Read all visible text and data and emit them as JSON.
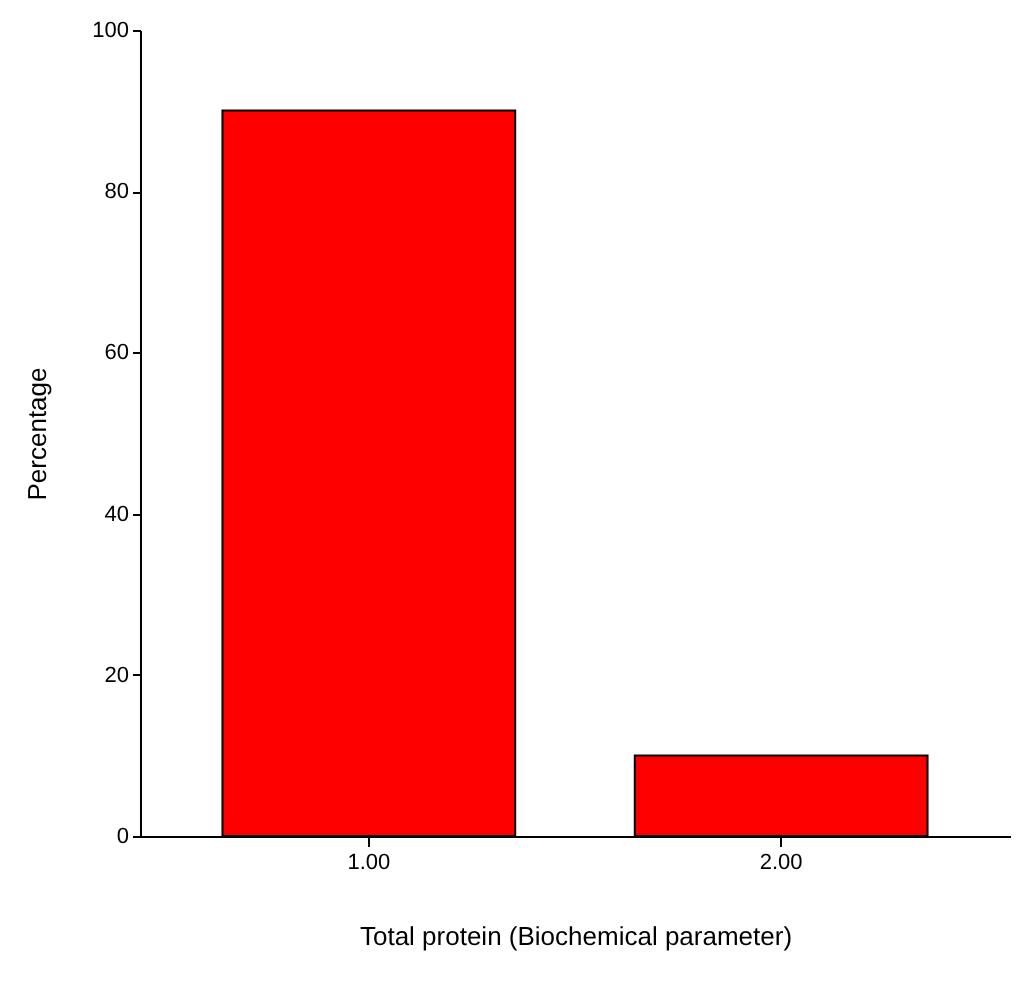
{
  "chart_data": {
    "type": "bar",
    "xlabel": "Total protein (Biochemical parameter)",
    "ylabel": "Percentage",
    "categories": [
      "1.00",
      "2.00"
    ],
    "values": [
      90,
      10
    ],
    "color": "#ff0000",
    "ylim": [
      0,
      100
    ],
    "yticks": [
      0,
      20,
      40,
      60,
      80,
      100
    ],
    "grid": false
  }
}
